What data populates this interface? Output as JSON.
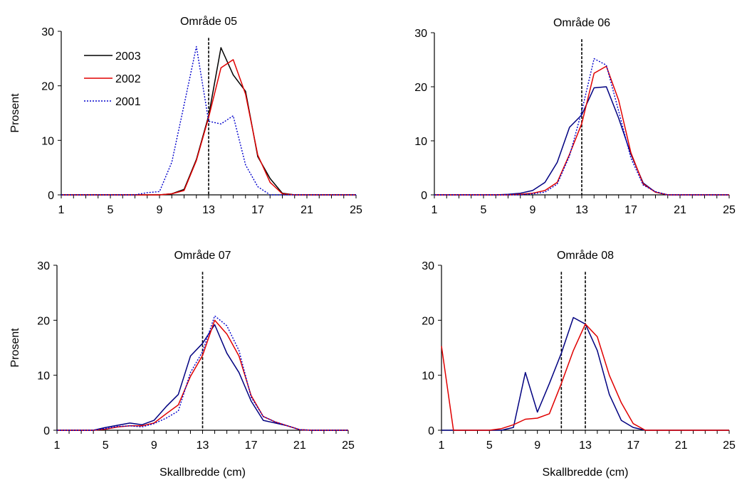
{
  "chart_data": [
    {
      "type": "line",
      "title": "Område 05",
      "xlabel": "",
      "ylabel": "Prosent",
      "xlim": [
        1,
        25
      ],
      "ylim": [
        0,
        30
      ],
      "x_ticks": [
        1,
        5,
        9,
        13,
        17,
        21,
        25
      ],
      "y_ticks": [
        0,
        10,
        20,
        30
      ],
      "legend": {
        "placement": "top-left",
        "entries": [
          "2003",
          "2002",
          "2001"
        ]
      },
      "reference_lines_x": [
        13
      ],
      "series": [
        {
          "name": "2003",
          "color": "#000000",
          "style": "solid",
          "x": [
            1,
            2,
            3,
            4,
            5,
            6,
            7,
            8,
            9,
            10,
            11,
            12,
            13,
            14,
            15,
            16,
            17,
            18,
            19,
            20,
            21,
            22,
            23,
            24,
            25
          ],
          "y": [
            0,
            0,
            0,
            0,
            0,
            0,
            0,
            0,
            0,
            0.2,
            1.0,
            6.5,
            14.5,
            27.0,
            22.0,
            19.0,
            7.0,
            3.0,
            0.3,
            0,
            0,
            0,
            0,
            0,
            0
          ]
        },
        {
          "name": "2002",
          "color": "#e00000",
          "style": "solid",
          "x": [
            1,
            2,
            3,
            4,
            5,
            6,
            7,
            8,
            9,
            10,
            11,
            12,
            13,
            14,
            15,
            16,
            17,
            18,
            19,
            20,
            21,
            22,
            23,
            24,
            25
          ],
          "y": [
            0,
            0,
            0,
            0,
            0,
            0,
            0,
            0,
            0,
            0.2,
            0.8,
            6.3,
            14.2,
            23.3,
            24.8,
            18.5,
            7.3,
            2.3,
            0.2,
            0,
            0,
            0,
            0,
            0,
            0
          ]
        },
        {
          "name": "2001",
          "color": "#0000cc",
          "style": "dotted",
          "x": [
            1,
            2,
            3,
            4,
            5,
            6,
            7,
            8,
            9,
            10,
            11,
            12,
            13,
            14,
            15,
            16,
            17,
            18,
            19,
            20,
            21,
            22,
            23,
            24,
            25
          ],
          "y": [
            0,
            0,
            0,
            0,
            0,
            0,
            0,
            0.4,
            0.6,
            6.0,
            16.5,
            27.2,
            13.5,
            13.0,
            14.5,
            5.5,
            1.5,
            0,
            0,
            0,
            0,
            0,
            0,
            0,
            0
          ]
        }
      ]
    },
    {
      "type": "line",
      "title": "Område 06",
      "xlabel": "",
      "ylabel": "",
      "xlim": [
        1,
        25
      ],
      "ylim": [
        0,
        30
      ],
      "x_ticks": [
        1,
        5,
        9,
        13,
        17,
        21,
        25
      ],
      "y_ticks": [
        0,
        10,
        20,
        30
      ],
      "reference_lines_x": [
        13
      ],
      "series": [
        {
          "color": "#000080",
          "style": "solid",
          "x": [
            1,
            2,
            3,
            4,
            5,
            6,
            7,
            8,
            9,
            10,
            11,
            12,
            13,
            14,
            15,
            16,
            17,
            18,
            19,
            20,
            21,
            22,
            23,
            24,
            25
          ],
          "y": [
            0,
            0,
            0,
            0,
            0,
            0,
            0.1,
            0.3,
            0.8,
            2.3,
            6.0,
            12.5,
            14.8,
            19.8,
            20.0,
            14.2,
            7.5,
            2.2,
            0.5,
            0,
            0,
            0,
            0,
            0,
            0
          ]
        },
        {
          "color": "#e00000",
          "style": "solid",
          "x": [
            1,
            2,
            3,
            4,
            5,
            6,
            7,
            8,
            9,
            10,
            11,
            12,
            13,
            14,
            15,
            16,
            17,
            18,
            19,
            20,
            21,
            22,
            23,
            24,
            25
          ],
          "y": [
            0,
            0,
            0,
            0,
            0,
            0,
            0,
            0.1,
            0.3,
            0.8,
            2.3,
            7.5,
            13.2,
            22.5,
            23.8,
            17.5,
            7.8,
            2.0,
            0.5,
            0,
            0,
            0,
            0,
            0,
            0
          ]
        },
        {
          "color": "#0000cc",
          "style": "dotted",
          "x": [
            1,
            2,
            3,
            4,
            5,
            6,
            7,
            8,
            9,
            10,
            11,
            12,
            13,
            14,
            15,
            16,
            17,
            18,
            19,
            20,
            21,
            22,
            23,
            24,
            25
          ],
          "y": [
            0,
            0,
            0,
            0,
            0,
            0,
            0,
            0,
            0.2,
            0.5,
            2.0,
            7.2,
            15.5,
            25.2,
            24.0,
            15.5,
            6.8,
            1.8,
            0.6,
            0,
            0,
            0,
            0,
            0,
            0
          ]
        }
      ]
    },
    {
      "type": "line",
      "title": "Område 07",
      "xlabel": "Skallbredde (cm)",
      "ylabel": "Prosent",
      "xlim": [
        1,
        25
      ],
      "ylim": [
        0,
        30
      ],
      "x_ticks": [
        1,
        5,
        9,
        13,
        17,
        21,
        25
      ],
      "y_ticks": [
        0,
        10,
        20,
        30
      ],
      "reference_lines_x": [
        13
      ],
      "series": [
        {
          "color": "#000080",
          "style": "solid",
          "x": [
            1,
            2,
            3,
            4,
            5,
            6,
            7,
            8,
            9,
            10,
            11,
            12,
            13,
            14,
            15,
            16,
            17,
            18,
            19,
            20,
            21,
            22,
            23,
            24,
            25
          ],
          "y": [
            0,
            0,
            0,
            0,
            0.5,
            0.9,
            1.3,
            1.0,
            1.8,
            4.3,
            6.5,
            13.5,
            15.8,
            19.2,
            14.0,
            10.5,
            5.3,
            1.8,
            1.3,
            0.8,
            0.1,
            0,
            0,
            0,
            0
          ]
        },
        {
          "color": "#e00000",
          "style": "solid",
          "x": [
            1,
            2,
            3,
            4,
            5,
            6,
            7,
            8,
            9,
            10,
            11,
            12,
            13,
            14,
            15,
            16,
            17,
            18,
            19,
            20,
            21,
            22,
            23,
            24,
            25
          ],
          "y": [
            0,
            0,
            0,
            0,
            0.2,
            0.6,
            0.8,
            0.8,
            1.3,
            3.0,
            4.6,
            9.8,
            13.6,
            20.0,
            17.5,
            13.5,
            6.3,
            2.5,
            1.5,
            0.8,
            0.1,
            0,
            0,
            0,
            0
          ]
        },
        {
          "color": "#0000cc",
          "style": "dotted",
          "x": [
            1,
            2,
            3,
            4,
            5,
            6,
            7,
            8,
            9,
            10,
            11,
            12,
            13,
            14,
            15,
            16,
            17,
            18,
            19,
            20,
            21,
            22,
            23,
            24,
            25
          ],
          "y": [
            0,
            0,
            0,
            0,
            0.3,
            0.7,
            0.8,
            0.6,
            1.2,
            2.2,
            3.5,
            10.5,
            14.3,
            20.8,
            19.0,
            14.5,
            6.0,
            2.5,
            1.5,
            0.8,
            0.1,
            0,
            0,
            0,
            0
          ]
        }
      ]
    },
    {
      "type": "line",
      "title": "Område 08",
      "xlabel": "Skallbredde (cm)",
      "ylabel": "",
      "xlim": [
        1,
        25
      ],
      "ylim": [
        0,
        30
      ],
      "x_ticks": [
        1,
        5,
        9,
        13,
        17,
        21,
        25
      ],
      "y_ticks": [
        0,
        10,
        20,
        30
      ],
      "reference_lines_x": [
        11,
        13
      ],
      "series": [
        {
          "color": "#000080",
          "style": "solid",
          "x": [
            1,
            2,
            3,
            4,
            5,
            6,
            7,
            8,
            9,
            10,
            11,
            12,
            13,
            14,
            15,
            16,
            17,
            18,
            19,
            20,
            21,
            22,
            23,
            24,
            25
          ],
          "y": [
            0,
            0,
            0,
            0,
            0,
            0,
            0.5,
            10.5,
            3.3,
            8.5,
            14.0,
            20.5,
            19.3,
            14.5,
            6.5,
            1.8,
            0.5,
            0,
            0,
            0,
            0,
            0,
            0,
            0,
            0
          ]
        },
        {
          "color": "#e00000",
          "style": "solid",
          "x": [
            1,
            2,
            3,
            4,
            5,
            6,
            7,
            8,
            9,
            10,
            11,
            12,
            13,
            14,
            15,
            16,
            17,
            18,
            19,
            20,
            21,
            22,
            23,
            24,
            25
          ],
          "y": [
            15.3,
            0,
            0,
            0,
            0,
            0.3,
            1.0,
            2.0,
            2.2,
            3.0,
            8.5,
            14.5,
            19.3,
            17.0,
            10.0,
            5.0,
            1.2,
            0,
            0,
            0,
            0,
            0,
            0,
            0,
            0
          ]
        }
      ]
    }
  ]
}
